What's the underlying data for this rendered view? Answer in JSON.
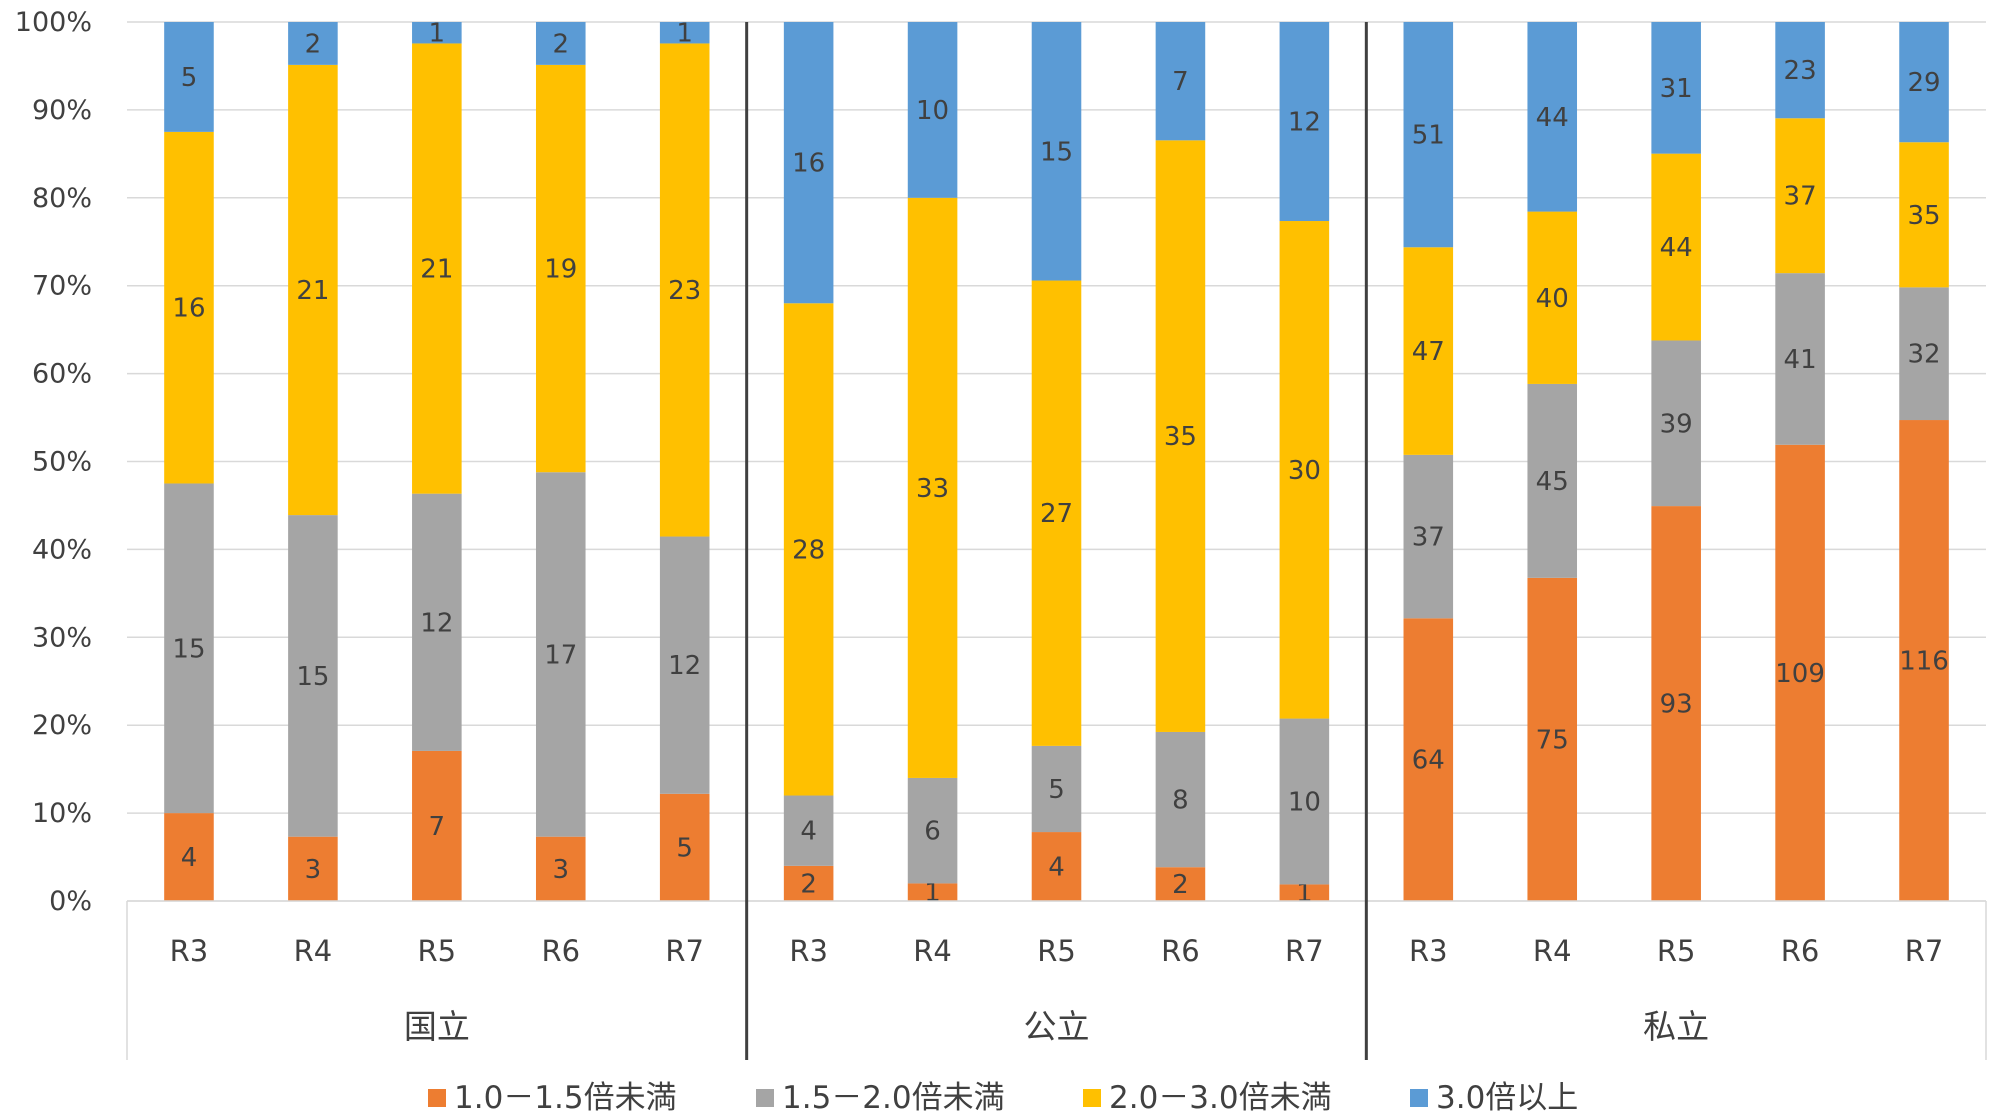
{
  "chart_data": {
    "type": "bar",
    "stacked": "percent",
    "groups": [
      "国立",
      "公立",
      "私立"
    ],
    "categories": [
      "R3",
      "R4",
      "R5",
      "R6",
      "R7"
    ],
    "ylim": [
      0,
      100
    ],
    "yticks": [
      "0%",
      "10%",
      "20%",
      "30%",
      "40%",
      "50%",
      "60%",
      "70%",
      "80%",
      "90%",
      "100%"
    ],
    "grid": true,
    "legend_position": "bottom",
    "series": [
      {
        "name": "1.0－1.5倍未満",
        "color": "#ED7D31",
        "values": [
          [
            4,
            3,
            7,
            3,
            5
          ],
          [
            2,
            1,
            4,
            2,
            1
          ],
          [
            64,
            75,
            93,
            109,
            116
          ]
        ]
      },
      {
        "name": "1.5－2.0倍未満",
        "color": "#A5A5A5",
        "values": [
          [
            15,
            15,
            12,
            17,
            12
          ],
          [
            4,
            6,
            5,
            8,
            10
          ],
          [
            37,
            45,
            39,
            41,
            32
          ]
        ]
      },
      {
        "name": "2.0－3.0倍未満",
        "color": "#FFC000",
        "values": [
          [
            16,
            21,
            21,
            19,
            23
          ],
          [
            28,
            33,
            27,
            35,
            30
          ],
          [
            47,
            40,
            44,
            37,
            35
          ]
        ]
      },
      {
        "name": "3.0倍以上",
        "color": "#5B9BD5",
        "values": [
          [
            5,
            2,
            1,
            2,
            1
          ],
          [
            16,
            10,
            15,
            7,
            12
          ],
          [
            51,
            44,
            31,
            23,
            29
          ]
        ]
      }
    ]
  }
}
